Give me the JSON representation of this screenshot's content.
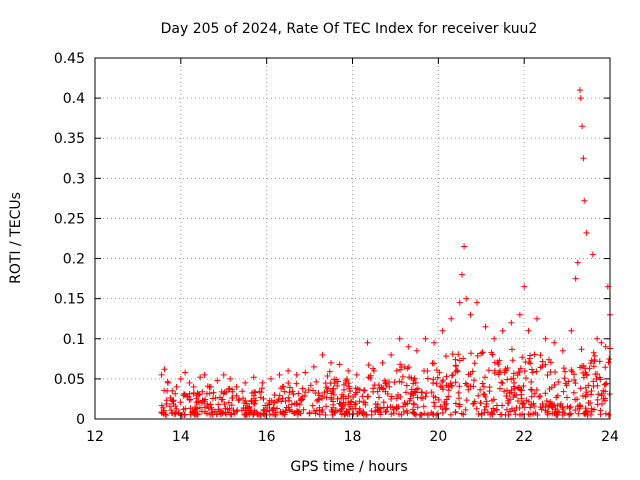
{
  "chart_data": {
    "type": "scatter",
    "title": "Day 205 of 2024, Rate Of TEC Index for receiver kuu2",
    "xlabel": "GPS time / hours",
    "ylabel": "ROTI / TECUs",
    "xlim": [
      12,
      24
    ],
    "ylim": [
      0,
      0.45
    ],
    "xticks": [
      12,
      14,
      16,
      18,
      20,
      22,
      24
    ],
    "yticks": [
      0,
      0.05,
      0.1,
      0.15,
      0.2,
      0.25,
      0.3,
      0.35,
      0.4,
      0.45
    ],
    "xtick_labels": [
      "12",
      "14",
      "16",
      "18",
      "20",
      "22",
      "24"
    ],
    "ytick_labels": [
      "0",
      "0.05",
      "0.1",
      "0.15",
      "0.2",
      "0.25",
      "0.3",
      "0.35",
      "0.4",
      "0.45"
    ],
    "grid": true,
    "marker": "+",
    "marker_color": "#ff0000",
    "series": [
      {
        "name": "ROTI",
        "x": [
          13.55,
          13.62,
          13.7,
          13.8,
          13.9,
          14.0,
          14.1,
          14.2,
          14.3,
          14.45,
          14.55,
          14.7,
          14.85,
          15.0,
          15.15,
          15.3,
          15.5,
          15.7,
          15.9,
          16.1,
          16.3,
          16.5,
          16.7,
          16.9,
          17.1,
          17.3,
          17.5,
          17.7,
          17.9,
          18.1,
          18.35,
          18.5,
          18.7,
          18.9,
          19.1,
          19.3,
          19.5,
          19.7,
          19.9,
          20.1,
          20.3,
          20.5,
          20.55,
          20.6,
          20.65,
          20.75,
          20.9,
          21.1,
          21.3,
          21.5,
          21.7,
          21.9,
          22.0,
          22.1,
          22.3,
          22.5,
          22.7,
          22.9,
          23.1,
          23.2,
          23.25,
          23.3,
          23.32,
          23.35,
          23.38,
          23.4,
          23.45,
          23.6,
          23.7,
          23.8,
          23.9,
          23.95,
          24.0
        ],
        "y": [
          0.055,
          0.062,
          0.045,
          0.035,
          0.04,
          0.05,
          0.058,
          0.045,
          0.04,
          0.052,
          0.055,
          0.04,
          0.048,
          0.055,
          0.05,
          0.04,
          0.045,
          0.052,
          0.045,
          0.05,
          0.055,
          0.06,
          0.055,
          0.058,
          0.065,
          0.08,
          0.07,
          0.068,
          0.06,
          0.055,
          0.095,
          0.06,
          0.07,
          0.08,
          0.1,
          0.09,
          0.085,
          0.1,
          0.095,
          0.11,
          0.125,
          0.145,
          0.18,
          0.215,
          0.15,
          0.13,
          0.145,
          0.115,
          0.1,
          0.11,
          0.12,
          0.13,
          0.165,
          0.11,
          0.125,
          0.1,
          0.095,
          0.085,
          0.11,
          0.175,
          0.195,
          0.41,
          0.4,
          0.365,
          0.325,
          0.272,
          0.232,
          0.205,
          0.1,
          0.095,
          0.09,
          0.165,
          0.13
        ],
        "baseline_band": [
          0.005,
          0.035
        ]
      }
    ]
  }
}
